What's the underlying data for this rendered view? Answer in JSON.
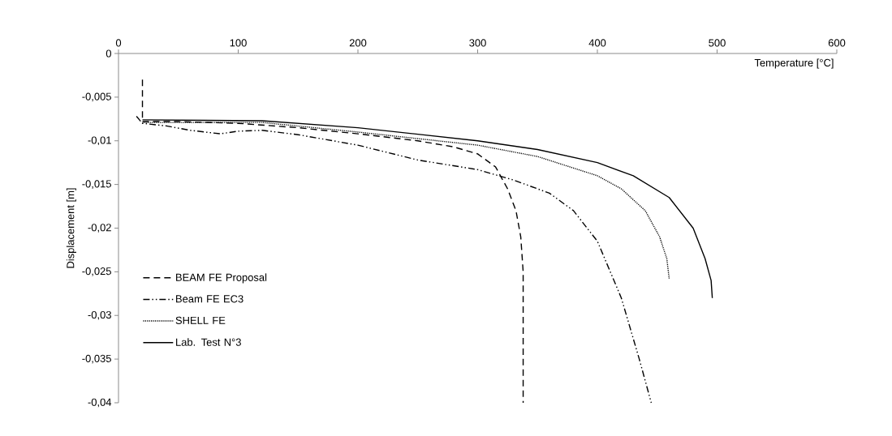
{
  "chart_data": {
    "type": "line",
    "xlabel": "Temperature [°C]",
    "ylabel": "Displacement [m]",
    "xlim": [
      0,
      600
    ],
    "ylim": [
      -0.04,
      0
    ],
    "xticks": [
      0,
      100,
      200,
      300,
      400,
      500,
      600
    ],
    "yticks": [
      {
        "value": -0.04,
        "label": "-0,04"
      },
      {
        "value": -0.035,
        "label": "-0,035"
      },
      {
        "value": -0.03,
        "label": "-0,03"
      },
      {
        "value": -0.025,
        "label": "-0,025"
      },
      {
        "value": -0.02,
        "label": "-0,02"
      },
      {
        "value": -0.015,
        "label": "-0,015"
      },
      {
        "value": -0.01,
        "label": "-0,01"
      },
      {
        "value": -0.005,
        "label": "-0,005"
      },
      {
        "value": 0,
        "label": "0"
      }
    ],
    "legend": "left",
    "grid": false,
    "series": [
      {
        "name": "BEAM FE Proposal",
        "color": "#000000",
        "line_style": "dashed",
        "x": [
          20,
          20,
          50,
          100,
          150,
          200,
          250,
          280,
          300,
          315,
          325,
          332,
          336,
          338,
          338
        ],
        "values": [
          -0.003,
          -0.0078,
          -0.0078,
          -0.008,
          -0.0085,
          -0.0092,
          -0.01,
          -0.0107,
          -0.0115,
          -0.013,
          -0.0155,
          -0.018,
          -0.021,
          -0.025,
          -0.04
        ]
      },
      {
        "name": "Beam FE EC3",
        "color": "#000000",
        "line_style": "dashdotted",
        "x": [
          15,
          20,
          40,
          60,
          85,
          100,
          120,
          150,
          200,
          250,
          300,
          330,
          360,
          380,
          400,
          420,
          435,
          445
        ],
        "values": [
          -0.0072,
          -0.008,
          -0.0083,
          -0.0088,
          -0.0092,
          -0.0089,
          -0.0088,
          -0.0093,
          -0.0105,
          -0.0122,
          -0.0133,
          -0.0145,
          -0.016,
          -0.018,
          -0.0215,
          -0.028,
          -0.035,
          -0.04
        ]
      },
      {
        "name": "SHELL FE",
        "color": "#000000",
        "line_style": "dotted",
        "x": [
          20,
          120,
          200,
          300,
          350,
          400,
          420,
          440,
          452,
          458,
          460
        ],
        "values": [
          -0.0079,
          -0.0079,
          -0.009,
          -0.0105,
          -0.0118,
          -0.014,
          -0.0155,
          -0.018,
          -0.021,
          -0.0235,
          -0.0258
        ]
      },
      {
        "name": "Lab. Test N°3",
        "color": "#000000",
        "line_style": "solid",
        "x": [
          20,
          120,
          200,
          300,
          350,
          400,
          430,
          460,
          480,
          490,
          495,
          496
        ],
        "values": [
          -0.0076,
          -0.0077,
          -0.0085,
          -0.01,
          -0.011,
          -0.0125,
          -0.014,
          -0.0165,
          -0.02,
          -0.0235,
          -0.026,
          -0.028
        ]
      }
    ]
  }
}
